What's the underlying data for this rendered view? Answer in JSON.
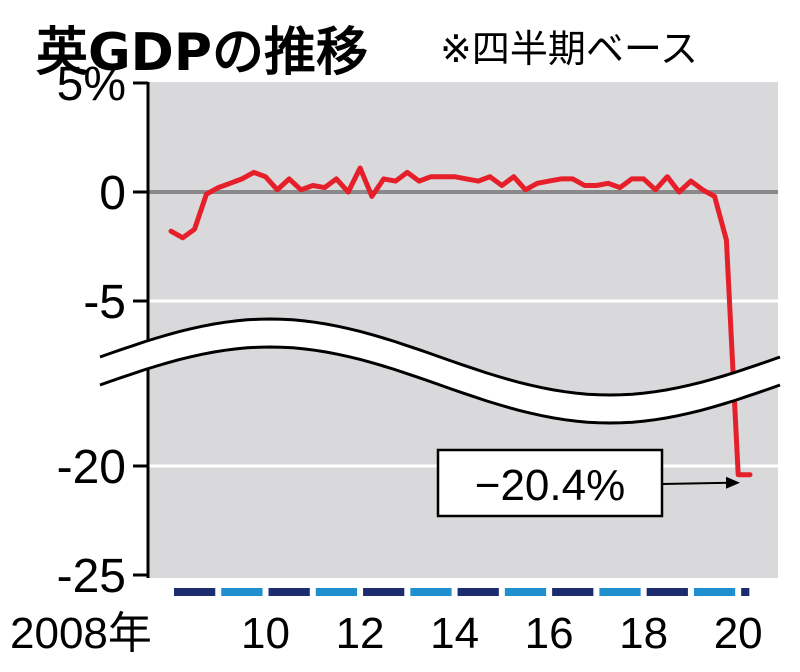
{
  "chart_data": {
    "type": "line",
    "title": "英GDPの推移",
    "subtitle": "※四半期ベース",
    "xlabel": "",
    "ylabel": "",
    "x_tick_labels": [
      "2008年",
      "10",
      "12",
      "14",
      "16",
      "18",
      "20"
    ],
    "x_tick_years": [
      2008,
      2010,
      2012,
      2014,
      2016,
      2018,
      2020
    ],
    "y_tick_labels": [
      "5%",
      "0",
      "-5",
      "-20",
      "-25"
    ],
    "y_tick_values": [
      5,
      0,
      -5,
      -20,
      -25
    ],
    "ylim": [
      -25,
      5
    ],
    "axis_break": [
      -8,
      -17
    ],
    "grid": "horizontal",
    "annotation": {
      "text": "−20.4%",
      "x": 2020.25,
      "y": -20.4
    },
    "colors": {
      "line": "#e5202a",
      "plot_bg": "#d9d9db",
      "zero_line": "#8a8a8a",
      "bar_dark": "#1c2c6e",
      "bar_light": "#1f8fd0"
    },
    "series": [
      {
        "x": [
          2008.0,
          2008.25,
          2008.5,
          2008.75,
          2009.0,
          2009.25,
          2009.5,
          2009.75,
          2010.0,
          2010.25,
          2010.5,
          2010.75,
          2011.0,
          2011.25,
          2011.5,
          2011.75,
          2012.0,
          2012.25,
          2012.5,
          2012.75,
          2013.0,
          2013.25,
          2013.5,
          2013.75,
          2014.0,
          2014.25,
          2014.5,
          2014.75,
          2015.0,
          2015.25,
          2015.5,
          2015.75,
          2016.0,
          2016.25,
          2016.5,
          2016.75,
          2017.0,
          2017.25,
          2017.5,
          2017.75,
          2018.0,
          2018.25,
          2018.5,
          2018.75,
          2019.0,
          2019.25,
          2019.5,
          2019.75,
          2020.0,
          2020.25
        ],
        "values": [
          -1.8,
          -2.1,
          -1.7,
          -0.1,
          0.2,
          0.4,
          0.6,
          0.9,
          0.7,
          0.1,
          0.6,
          0.1,
          0.3,
          0.2,
          0.6,
          0.0,
          1.1,
          -0.2,
          0.6,
          0.5,
          0.9,
          0.5,
          0.7,
          0.7,
          0.7,
          0.6,
          0.5,
          0.7,
          0.3,
          0.7,
          0.1,
          0.4,
          0.5,
          0.6,
          0.6,
          0.3,
          0.3,
          0.4,
          0.2,
          0.6,
          0.6,
          0.1,
          0.7,
          0.0,
          0.5,
          0.1,
          -0.2,
          -2.2,
          -20.4,
          -20.4
        ]
      }
    ]
  }
}
